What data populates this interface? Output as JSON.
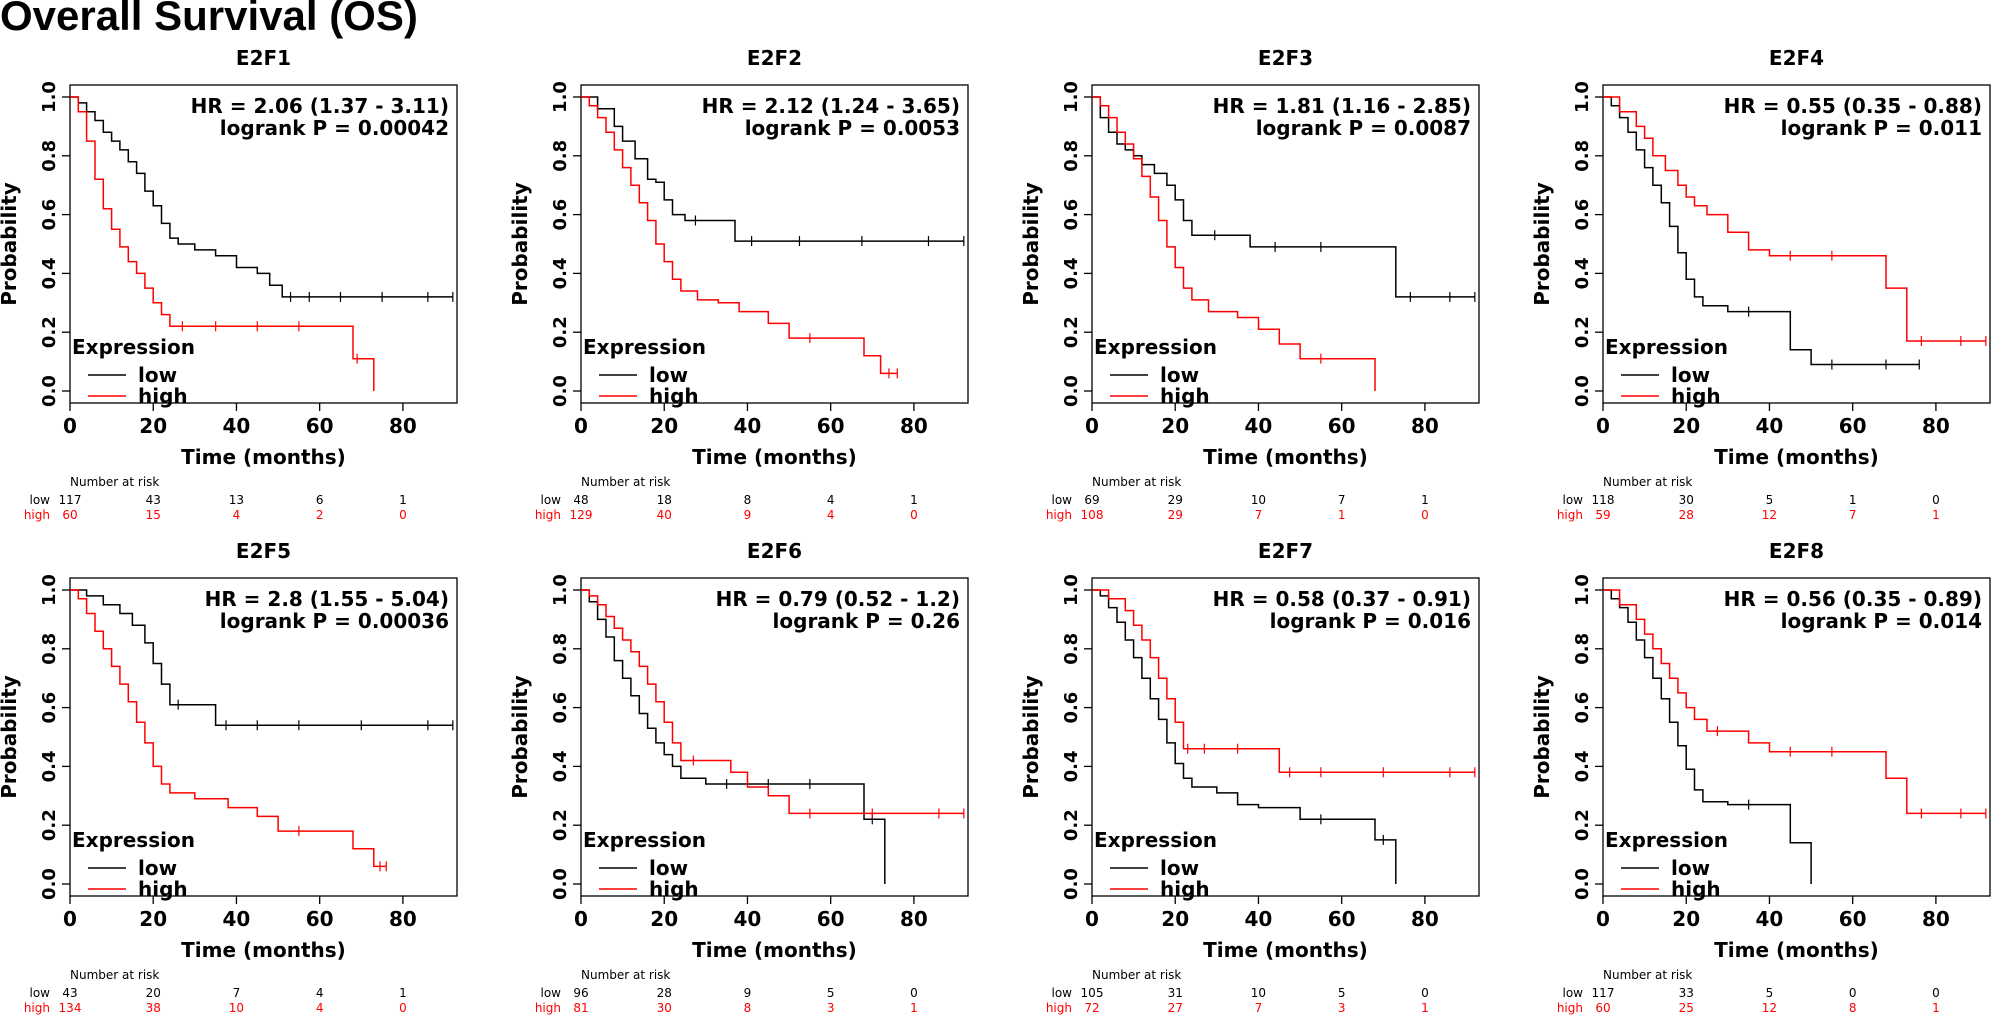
{
  "figure": {
    "title": "Overall Survival (OS)"
  },
  "labels": {
    "ylabel": "Probability",
    "xlabel": "Time (months)",
    "legend_title": "Expression",
    "legend_low": "low",
    "legend_high": "high",
    "number_at_risk": "Number at risk",
    "risk_low": "low",
    "risk_high": "high"
  },
  "colors": {
    "low": "#000000",
    "high": "#ff0000"
  },
  "chart_data": [
    {
      "type": "line",
      "title": "E2F1",
      "xlabel": "Time (months)",
      "ylabel": "Probability",
      "xlim": [
        0,
        93
      ],
      "ylim": [
        0,
        1
      ],
      "xticks": [
        "0",
        "20",
        "40",
        "60",
        "80"
      ],
      "yticks": [
        "0.0",
        "0.2",
        "0.4",
        "0.6",
        "0.8",
        "1.0"
      ],
      "hr_text": "HR = 2.06 (1.37 - 3.11)",
      "p_text": "logrank P = 0.00042",
      "series": [
        {
          "name": "low",
          "x": [
            0,
            2,
            4,
            6,
            8,
            10,
            12,
            14,
            16,
            18,
            20,
            22,
            24,
            26,
            30,
            35,
            40,
            45,
            48,
            51,
            55,
            60,
            70,
            80,
            92
          ],
          "y": [
            1.0,
            0.98,
            0.95,
            0.92,
            0.88,
            0.85,
            0.82,
            0.78,
            0.74,
            0.68,
            0.63,
            0.57,
            0.52,
            0.5,
            0.48,
            0.46,
            0.42,
            0.4,
            0.36,
            0.32,
            0.32,
            0.32,
            0.32,
            0.32,
            0.32
          ]
        },
        {
          "name": "high",
          "x": [
            0,
            2,
            4,
            6,
            8,
            10,
            12,
            14,
            16,
            18,
            20,
            22,
            24,
            30,
            40,
            50,
            60,
            68,
            70,
            73
          ],
          "y": [
            1.0,
            0.95,
            0.85,
            0.72,
            0.62,
            0.55,
            0.49,
            0.44,
            0.4,
            0.35,
            0.3,
            0.26,
            0.22,
            0.22,
            0.22,
            0.22,
            0.22,
            0.11,
            0.11,
            0.0
          ]
        }
      ],
      "risk": {
        "times": [
          "0",
          "20",
          "40",
          "60",
          "80"
        ],
        "low": [
          "117",
          "43",
          "13",
          "6",
          "1"
        ],
        "high": [
          "60",
          "15",
          "4",
          "2",
          "0"
        ]
      }
    },
    {
      "type": "line",
      "title": "E2F2",
      "xlabel": "Time (months)",
      "ylabel": "Probability",
      "xlim": [
        0,
        93
      ],
      "ylim": [
        0,
        1
      ],
      "xticks": [
        "0",
        "20",
        "40",
        "60",
        "80"
      ],
      "yticks": [
        "0.0",
        "0.2",
        "0.4",
        "0.6",
        "0.8",
        "1.0"
      ],
      "hr_text": "HR = 2.12 (1.24 - 3.65)",
      "p_text": "logrank P = 0.0053",
      "series": [
        {
          "name": "low",
          "x": [
            0,
            4,
            8,
            10,
            13,
            16,
            18,
            20,
            22,
            25,
            30,
            37,
            45,
            60,
            75,
            92
          ],
          "y": [
            1.0,
            0.96,
            0.9,
            0.85,
            0.79,
            0.72,
            0.71,
            0.65,
            0.6,
            0.58,
            0.58,
            0.51,
            0.51,
            0.51,
            0.51,
            0.51
          ]
        },
        {
          "name": "high",
          "x": [
            0,
            2,
            4,
            6,
            8,
            10,
            12,
            14,
            16,
            18,
            20,
            22,
            24,
            28,
            33,
            38,
            45,
            50,
            60,
            68,
            72,
            76
          ],
          "y": [
            1.0,
            0.97,
            0.93,
            0.88,
            0.82,
            0.76,
            0.7,
            0.64,
            0.58,
            0.5,
            0.44,
            0.38,
            0.34,
            0.31,
            0.3,
            0.27,
            0.23,
            0.18,
            0.18,
            0.12,
            0.06,
            0.06
          ]
        }
      ],
      "risk": {
        "times": [
          "0",
          "20",
          "40",
          "60",
          "80"
        ],
        "low": [
          "48",
          "18",
          "8",
          "4",
          "1"
        ],
        "high": [
          "129",
          "40",
          "9",
          "4",
          "0"
        ]
      }
    },
    {
      "type": "line",
      "title": "E2F3",
      "xlabel": "Time (months)",
      "ylabel": "Probability",
      "xlim": [
        0,
        93
      ],
      "ylim": [
        0,
        1
      ],
      "xticks": [
        "0",
        "20",
        "40",
        "60",
        "80"
      ],
      "yticks": [
        "0.0",
        "0.2",
        "0.4",
        "0.6",
        "0.8",
        "1.0"
      ],
      "hr_text": "HR = 1.81 (1.16 - 2.85)",
      "p_text": "logrank P = 0.0087",
      "series": [
        {
          "name": "low",
          "x": [
            0,
            2,
            4,
            6,
            8,
            10,
            12,
            15,
            18,
            20,
            22,
            24,
            35,
            38,
            50,
            60,
            73,
            80,
            92
          ],
          "y": [
            1.0,
            0.93,
            0.88,
            0.84,
            0.82,
            0.8,
            0.77,
            0.74,
            0.7,
            0.65,
            0.58,
            0.53,
            0.53,
            0.49,
            0.49,
            0.49,
            0.32,
            0.32,
            0.32
          ]
        },
        {
          "name": "high",
          "x": [
            0,
            2,
            4,
            6,
            8,
            10,
            12,
            14,
            16,
            18,
            20,
            22,
            24,
            28,
            35,
            40,
            45,
            50,
            60,
            68
          ],
          "y": [
            1.0,
            0.97,
            0.93,
            0.88,
            0.84,
            0.79,
            0.73,
            0.66,
            0.58,
            0.49,
            0.42,
            0.35,
            0.31,
            0.27,
            0.25,
            0.21,
            0.16,
            0.11,
            0.11,
            0.0
          ]
        }
      ],
      "risk": {
        "times": [
          "0",
          "20",
          "40",
          "60",
          "80"
        ],
        "low": [
          "69",
          "29",
          "10",
          "7",
          "1"
        ],
        "high": [
          "108",
          "29",
          "7",
          "1",
          "0"
        ]
      }
    },
    {
      "type": "line",
      "title": "E2F4",
      "xlabel": "Time (months)",
      "ylabel": "Probability",
      "xlim": [
        0,
        93
      ],
      "ylim": [
        0,
        1
      ],
      "xticks": [
        "0",
        "20",
        "40",
        "60",
        "80"
      ],
      "yticks": [
        "0.0",
        "0.2",
        "0.4",
        "0.6",
        "0.8",
        "1.0"
      ],
      "hr_text": "HR = 0.55 (0.35 - 0.88)",
      "p_text": "logrank P = 0.011",
      "series": [
        {
          "name": "low",
          "x": [
            0,
            2,
            4,
            6,
            8,
            10,
            12,
            14,
            16,
            18,
            20,
            22,
            24,
            30,
            40,
            45,
            50,
            60,
            76
          ],
          "y": [
            1.0,
            0.97,
            0.93,
            0.88,
            0.82,
            0.76,
            0.7,
            0.64,
            0.56,
            0.47,
            0.38,
            0.32,
            0.29,
            0.27,
            0.27,
            0.14,
            0.09,
            0.09,
            0.09
          ]
        },
        {
          "name": "high",
          "x": [
            0,
            4,
            8,
            10,
            12,
            15,
            18,
            20,
            22,
            25,
            30,
            35,
            40,
            50,
            60,
            68,
            73,
            80,
            92
          ],
          "y": [
            1.0,
            0.95,
            0.9,
            0.86,
            0.8,
            0.75,
            0.7,
            0.66,
            0.63,
            0.6,
            0.54,
            0.48,
            0.46,
            0.46,
            0.46,
            0.35,
            0.17,
            0.17,
            0.17
          ]
        }
      ],
      "risk": {
        "times": [
          "0",
          "20",
          "40",
          "60",
          "80"
        ],
        "low": [
          "118",
          "30",
          "5",
          "1",
          "0"
        ],
        "high": [
          "59",
          "28",
          "12",
          "7",
          "1"
        ]
      }
    },
    {
      "type": "line",
      "title": "E2F5",
      "xlabel": "Time (months)",
      "ylabel": "Probability",
      "xlim": [
        0,
        93
      ],
      "ylim": [
        0,
        1
      ],
      "xticks": [
        "0",
        "20",
        "40",
        "60",
        "80"
      ],
      "yticks": [
        "0.0",
        "0.2",
        "0.4",
        "0.6",
        "0.8",
        "1.0"
      ],
      "hr_text": "HR = 2.8 (1.55 - 5.04)",
      "p_text": "logrank P = 0.00036",
      "series": [
        {
          "name": "low",
          "x": [
            0,
            4,
            8,
            12,
            15,
            18,
            20,
            22,
            24,
            28,
            35,
            40,
            50,
            60,
            80,
            92
          ],
          "y": [
            1.0,
            0.98,
            0.95,
            0.92,
            0.88,
            0.82,
            0.75,
            0.68,
            0.61,
            0.61,
            0.54,
            0.54,
            0.54,
            0.54,
            0.54,
            0.54
          ]
        },
        {
          "name": "high",
          "x": [
            0,
            2,
            4,
            6,
            8,
            10,
            12,
            14,
            16,
            18,
            20,
            22,
            24,
            30,
            38,
            45,
            50,
            60,
            68,
            73,
            76
          ],
          "y": [
            1.0,
            0.97,
            0.92,
            0.86,
            0.8,
            0.74,
            0.68,
            0.62,
            0.55,
            0.48,
            0.4,
            0.34,
            0.31,
            0.29,
            0.26,
            0.23,
            0.18,
            0.18,
            0.12,
            0.06,
            0.06
          ]
        }
      ],
      "risk": {
        "times": [
          "0",
          "20",
          "40",
          "60",
          "80"
        ],
        "low": [
          "43",
          "20",
          "7",
          "4",
          "1"
        ],
        "high": [
          "134",
          "38",
          "10",
          "4",
          "0"
        ]
      }
    },
    {
      "type": "line",
      "title": "E2F6",
      "xlabel": "Time (months)",
      "ylabel": "Probability",
      "xlim": [
        0,
        93
      ],
      "ylim": [
        0,
        1
      ],
      "xticks": [
        "0",
        "20",
        "40",
        "60",
        "80"
      ],
      "yticks": [
        "0.0",
        "0.2",
        "0.4",
        "0.6",
        "0.8",
        "1.0"
      ],
      "hr_text": "HR = 0.79 (0.52 - 1.2)",
      "p_text": "logrank P = 0.26",
      "series": [
        {
          "name": "low",
          "x": [
            0,
            2,
            4,
            6,
            8,
            10,
            12,
            14,
            16,
            18,
            20,
            22,
            24,
            30,
            40,
            50,
            60,
            68,
            72,
            73
          ],
          "y": [
            1.0,
            0.96,
            0.9,
            0.84,
            0.76,
            0.7,
            0.64,
            0.58,
            0.53,
            0.48,
            0.44,
            0.4,
            0.36,
            0.34,
            0.34,
            0.34,
            0.34,
            0.22,
            0.22,
            0.0
          ]
        },
        {
          "name": "high",
          "x": [
            0,
            2,
            4,
            6,
            8,
            10,
            12,
            14,
            16,
            18,
            20,
            22,
            24,
            30,
            36,
            40,
            45,
            50,
            60,
            80,
            92
          ],
          "y": [
            1.0,
            0.98,
            0.95,
            0.91,
            0.87,
            0.83,
            0.79,
            0.74,
            0.68,
            0.62,
            0.55,
            0.48,
            0.42,
            0.42,
            0.38,
            0.33,
            0.3,
            0.24,
            0.24,
            0.24,
            0.24
          ]
        }
      ],
      "risk": {
        "times": [
          "0",
          "20",
          "40",
          "60",
          "80"
        ],
        "low": [
          "96",
          "28",
          "9",
          "5",
          "0"
        ],
        "high": [
          "81",
          "30",
          "8",
          "3",
          "1"
        ]
      }
    },
    {
      "type": "line",
      "title": "E2F7",
      "xlabel": "Time (months)",
      "ylabel": "Probability",
      "xlim": [
        0,
        93
      ],
      "ylim": [
        0,
        1
      ],
      "xticks": [
        "0",
        "20",
        "40",
        "60",
        "80"
      ],
      "yticks": [
        "0.0",
        "0.2",
        "0.4",
        "0.6",
        "0.8",
        "1.0"
      ],
      "hr_text": "HR = 0.58 (0.37 - 0.91)",
      "p_text": "logrank P = 0.016",
      "series": [
        {
          "name": "low",
          "x": [
            0,
            2,
            4,
            6,
            8,
            10,
            12,
            14,
            16,
            18,
            20,
            22,
            24,
            30,
            35,
            40,
            50,
            60,
            68,
            72,
            73
          ],
          "y": [
            1.0,
            0.98,
            0.94,
            0.89,
            0.83,
            0.77,
            0.7,
            0.63,
            0.56,
            0.48,
            0.41,
            0.36,
            0.33,
            0.31,
            0.27,
            0.26,
            0.22,
            0.22,
            0.15,
            0.15,
            0.0
          ]
        },
        {
          "name": "high",
          "x": [
            0,
            4,
            8,
            10,
            12,
            14,
            16,
            18,
            20,
            22,
            24,
            30,
            40,
            45,
            50,
            60,
            80,
            92
          ],
          "y": [
            1.0,
            0.97,
            0.93,
            0.88,
            0.83,
            0.77,
            0.7,
            0.63,
            0.55,
            0.46,
            0.46,
            0.46,
            0.46,
            0.38,
            0.38,
            0.38,
            0.38,
            0.38
          ]
        }
      ],
      "risk": {
        "times": [
          "0",
          "20",
          "40",
          "60",
          "80"
        ],
        "low": [
          "105",
          "31",
          "10",
          "5",
          "0"
        ],
        "high": [
          "72",
          "27",
          "7",
          "3",
          "1"
        ]
      }
    },
    {
      "type": "line",
      "title": "E2F8",
      "xlabel": "Time (months)",
      "ylabel": "Probability",
      "xlim": [
        0,
        93
      ],
      "ylim": [
        0,
        1
      ],
      "xticks": [
        "0",
        "20",
        "40",
        "60",
        "80"
      ],
      "yticks": [
        "0.0",
        "0.2",
        "0.4",
        "0.6",
        "0.8",
        "1.0"
      ],
      "hr_text": "HR = 0.56 (0.35 - 0.89)",
      "p_text": "logrank P = 0.014",
      "series": [
        {
          "name": "low",
          "x": [
            0,
            2,
            4,
            6,
            8,
            10,
            12,
            14,
            16,
            18,
            20,
            22,
            24,
            30,
            40,
            45,
            50
          ],
          "y": [
            1.0,
            0.97,
            0.94,
            0.89,
            0.83,
            0.77,
            0.7,
            0.63,
            0.55,
            0.47,
            0.39,
            0.32,
            0.28,
            0.27,
            0.27,
            0.14,
            0.0
          ]
        },
        {
          "name": "high",
          "x": [
            0,
            4,
            8,
            10,
            12,
            14,
            16,
            18,
            20,
            22,
            25,
            30,
            35,
            40,
            50,
            60,
            68,
            73,
            80,
            92
          ],
          "y": [
            1.0,
            0.95,
            0.9,
            0.85,
            0.8,
            0.75,
            0.7,
            0.65,
            0.6,
            0.56,
            0.52,
            0.52,
            0.48,
            0.45,
            0.45,
            0.45,
            0.36,
            0.24,
            0.24,
            0.24
          ]
        }
      ],
      "risk": {
        "times": [
          "0",
          "20",
          "40",
          "60",
          "80"
        ],
        "low": [
          "117",
          "33",
          "5",
          "0",
          "0"
        ],
        "high": [
          "60",
          "25",
          "12",
          "8",
          "1"
        ]
      }
    }
  ]
}
